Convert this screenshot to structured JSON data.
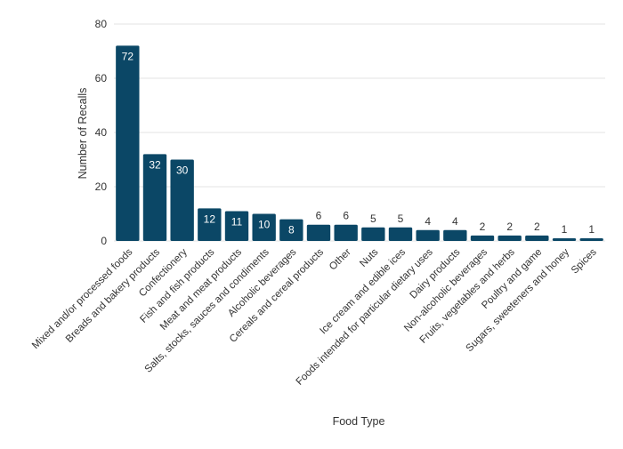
{
  "chart_data": {
    "type": "bar",
    "title": "",
    "xlabel": "Food Type",
    "ylabel": "Number of Recalls",
    "ylim": [
      0,
      80
    ],
    "yticks": [
      0,
      20,
      40,
      60,
      80
    ],
    "grid": true,
    "legend": "none",
    "bar_color": "#0b4766",
    "categories": [
      "Mixed and/or processed foods",
      "Breads and bakery products",
      "Confectionery",
      "Fish and fish products",
      "Meat and meat products",
      "Salts, stocks, sauces and condiments",
      "Alcoholic beverages",
      "Cereals and cereal products",
      "Other",
      "Nuts",
      "Ice cream and edible ices",
      "Foods intended for particular dietary uses",
      "Dairy products",
      "Non-alcoholic beverages",
      "Fruits, vegetables and herbs",
      "Poultry and game",
      "Sugars, sweeteners and honey",
      "Spices"
    ],
    "values": [
      72,
      32,
      30,
      12,
      11,
      10,
      8,
      6,
      6,
      5,
      5,
      4,
      4,
      2,
      2,
      2,
      1,
      1
    ]
  }
}
